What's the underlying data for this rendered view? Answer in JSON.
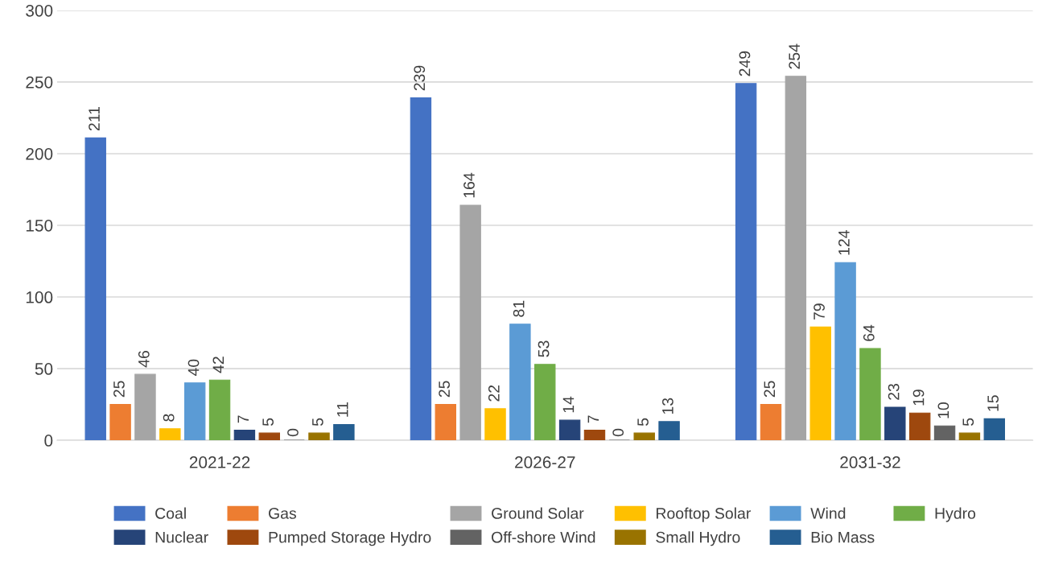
{
  "chart_data": {
    "type": "bar",
    "categories": [
      "2021-22",
      "2026-27",
      "2031-32"
    ],
    "series": [
      {
        "name": "Coal",
        "color": "#4472c4",
        "values": [
          211,
          239,
          249
        ]
      },
      {
        "name": "Gas",
        "color": "#ed7d31",
        "values": [
          25,
          25,
          25
        ]
      },
      {
        "name": "Ground Solar",
        "color": "#a5a5a5",
        "values": [
          46,
          164,
          254
        ]
      },
      {
        "name": "Rooftop Solar",
        "color": "#ffc000",
        "values": [
          8,
          22,
          79
        ]
      },
      {
        "name": "Wind",
        "color": "#5b9bd5",
        "values": [
          40,
          81,
          124
        ]
      },
      {
        "name": "Hydro",
        "color": "#70ad47",
        "values": [
          42,
          53,
          64
        ]
      },
      {
        "name": "Nuclear",
        "color": "#264478",
        "values": [
          7,
          14,
          23
        ]
      },
      {
        "name": "Pumped Storage Hydro",
        "color": "#9e480e",
        "values": [
          5,
          7,
          19
        ]
      },
      {
        "name": "Off-shore Wind",
        "color": "#636363",
        "values": [
          0,
          0,
          10
        ]
      },
      {
        "name": "Small Hydro",
        "color": "#997300",
        "values": [
          5,
          5,
          5
        ]
      },
      {
        "name": "Bio Mass",
        "color": "#255e91",
        "values": [
          11,
          13,
          15
        ]
      }
    ],
    "ylim": [
      0,
      300
    ],
    "yticks": [
      0,
      50,
      100,
      150,
      200,
      250,
      300
    ],
    "grid": "y",
    "legend": "bottom",
    "data_labels": true
  }
}
